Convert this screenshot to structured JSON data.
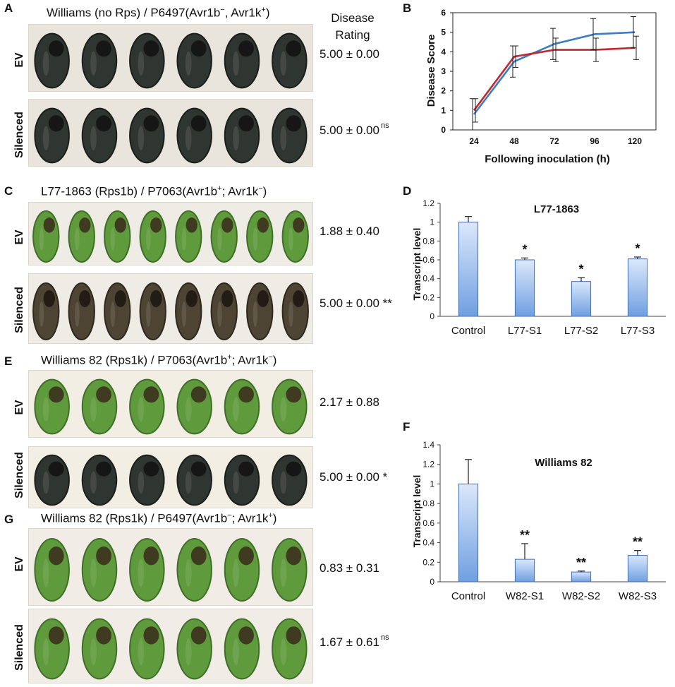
{
  "panels": {
    "A": {
      "letter": "A",
      "title_pre": "Williams (no Rps) / P6497(Avr1b",
      "title_sup1": "−",
      "title_mid": ", Avr1k",
      "title_sup2": "+",
      "title_post": ")",
      "header_line1": "Disease",
      "header_line2": "Rating",
      "rows": [
        {
          "label": "EV",
          "rating": "5.00 ± 0.00",
          "sig": "",
          "seeds": 6,
          "color": "dark"
        },
        {
          "label": "Silenced",
          "rating": "5.00 ± 0.00",
          "sig": "ns",
          "seeds": 6,
          "color": "dark"
        }
      ]
    },
    "C": {
      "letter": "C",
      "title_pre": "L77-1863 (Rps1b)  / P7063(Avr1b",
      "title_sup1": "+",
      "title_mid": "; Avr1k",
      "title_sup2": "−",
      "title_post": ")",
      "rows": [
        {
          "label": "EV",
          "rating": "1.88 ± 0.40",
          "sig": "",
          "seeds": 8,
          "color": "green"
        },
        {
          "label": "Silenced",
          "rating": "5.00 ± 0.00 **",
          "sig": "",
          "seeds": 8,
          "color": "brown"
        }
      ]
    },
    "E": {
      "letter": "E",
      "title_pre": "Williams 82 (Rps1k)  / P7063(Avr1b",
      "title_sup1": "+",
      "title_mid": "; Avr1k",
      "title_sup2": "−",
      "title_post": ")",
      "rows": [
        {
          "label": "EV",
          "rating": "2.17 ± 0.88",
          "sig": "",
          "seeds": 6,
          "color": "green"
        },
        {
          "label": "Silenced",
          "rating": "5.00 ± 0.00 *",
          "sig": "",
          "seeds": 6,
          "color": "dark"
        }
      ]
    },
    "G": {
      "letter": "G",
      "title_pre": "Williams 82 (Rps1k)  / P6497(Avr1b",
      "title_sup1": "−",
      "title_mid": "; Avr1k",
      "title_sup2": "+",
      "title_post": ")",
      "rows": [
        {
          "label": "EV",
          "rating": "0.83 ± 0.31",
          "sig": "",
          "seeds": 6,
          "color": "green"
        },
        {
          "label": "Silenced",
          "rating": "1.67 ± 0.61",
          "sig": "ns",
          "seeds": 6,
          "color": "green"
        }
      ]
    }
  },
  "colors": {
    "red_series": "#c0282d",
    "blue_series": "#3b7dc4",
    "bar_fill_top": "#dbe8fb",
    "bar_fill_bottom": "#6f9fe0",
    "bar_stroke": "#3f6db5",
    "seed_green": "#5f9a3c",
    "seed_dark": "#2e332c",
    "seed_brown": "#4a4032"
  },
  "chart_data": [
    {
      "id": "B",
      "letter": "B",
      "type": "line",
      "title": "",
      "xlabel": "Following inoculation (h)",
      "ylabel": "Disease Score",
      "x": [
        24,
        48,
        72,
        96,
        120
      ],
      "xticks": [
        "24",
        "48",
        "72",
        "96",
        "120"
      ],
      "yticks": [
        "0",
        "1",
        "2",
        "3",
        "4",
        "5",
        "6"
      ],
      "ylim": [
        0,
        6
      ],
      "series": [
        {
          "name": "red",
          "color": "#c0282d",
          "values": [
            1.0,
            3.75,
            4.1,
            4.1,
            4.2
          ],
          "errors": [
            0.6,
            0.55,
            0.6,
            0.6,
            0.6
          ]
        },
        {
          "name": "blue",
          "color": "#3b7dc4",
          "values": [
            0.8,
            3.5,
            4.4,
            4.9,
            5.0
          ],
          "errors": [
            0.8,
            0.8,
            0.8,
            0.8,
            0.8
          ]
        }
      ]
    },
    {
      "id": "D",
      "letter": "D",
      "type": "bar",
      "title": "L77-1863",
      "ylabel": "Transcript level",
      "xlabel": "",
      "categories": [
        "Control",
        "L77-S1",
        "L77-S2",
        "L77-S3"
      ],
      "values": [
        1.0,
        0.6,
        0.37,
        0.61
      ],
      "errors": [
        0.06,
        0.02,
        0.04,
        0.02
      ],
      "annotations": [
        "",
        "*",
        "*",
        "*"
      ],
      "yticks": [
        "0",
        "0.2",
        "0.4",
        "0.6",
        "0.8",
        "1",
        "1.2"
      ],
      "ylim": [
        0,
        1.2
      ]
    },
    {
      "id": "F",
      "letter": "F",
      "type": "bar",
      "title": "Williams 82",
      "ylabel": "Transcript level",
      "xlabel": "",
      "categories": [
        "Control",
        "W82-S1",
        "W82-S2",
        "W82-S3"
      ],
      "values": [
        1.0,
        0.23,
        0.1,
        0.27
      ],
      "errors": [
        0.25,
        0.16,
        0.01,
        0.05
      ],
      "annotations": [
        "",
        "**",
        "**",
        "**"
      ],
      "yticks": [
        "0",
        "0.2",
        "0.4",
        "0.6",
        "0.8",
        "1",
        "1.2",
        "1.4"
      ],
      "ylim": [
        0,
        1.4
      ]
    }
  ]
}
